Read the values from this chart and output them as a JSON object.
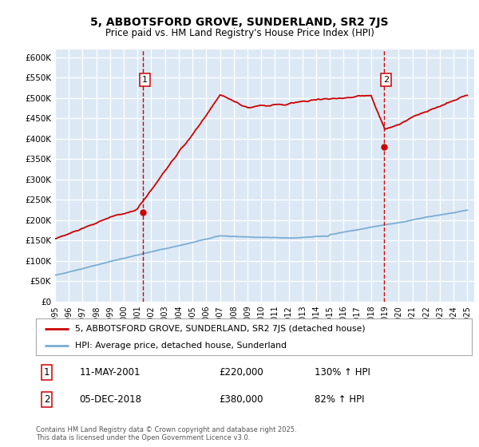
{
  "title": "5, ABBOTSFORD GROVE, SUNDERLAND, SR2 7JS",
  "subtitle": "Price paid vs. HM Land Registry's House Price Index (HPI)",
  "ylabel_ticks": [
    "£0",
    "£50K",
    "£100K",
    "£150K",
    "£200K",
    "£250K",
    "£300K",
    "£350K",
    "£400K",
    "£450K",
    "£500K",
    "£550K",
    "£600K"
  ],
  "ylim": [
    0,
    620000
  ],
  "ytick_vals": [
    0,
    50000,
    100000,
    150000,
    200000,
    250000,
    300000,
    350000,
    400000,
    450000,
    500000,
    550000,
    600000
  ],
  "bg_color": "#dce9f5",
  "grid_color": "#ffffff",
  "red_color": "#cc0000",
  "blue_color": "#7aadd4",
  "annotation1_date": "11-MAY-2001",
  "annotation1_price": "£220,000",
  "annotation1_hpi": "130% ↑ HPI",
  "annotation2_date": "05-DEC-2018",
  "annotation2_price": "£380,000",
  "annotation2_hpi": "82% ↑ HPI",
  "legend_red": "5, ABBOTSFORD GROVE, SUNDERLAND, SR2 7JS (detached house)",
  "legend_blue": "HPI: Average price, detached house, Sunderland",
  "footer": "Contains HM Land Registry data © Crown copyright and database right 2025.\nThis data is licensed under the Open Government Licence v3.0.",
  "vline1_year": 2001.37,
  "vline2_year": 2018.92,
  "p1_price": 220000,
  "p2_price": 380000,
  "xlim_start": 1995,
  "xlim_end": 2025.5
}
